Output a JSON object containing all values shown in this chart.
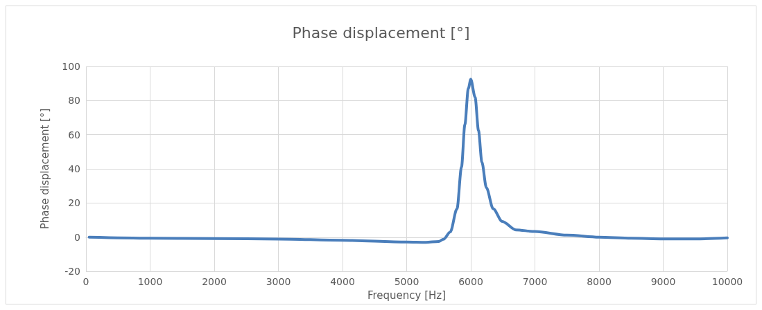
{
  "chart_data": {
    "type": "line",
    "title": "Phase displacement [°]",
    "xlabel": "Frequency [Hz]",
    "ylabel": "Phase displacement [°]",
    "xlim": [
      0,
      10000
    ],
    "xticks": [
      0,
      1000,
      2000,
      3000,
      4000,
      5000,
      6000,
      7000,
      8000,
      9000,
      10000
    ],
    "ylim": [
      -20,
      100
    ],
    "yticks": [
      -20,
      0,
      20,
      40,
      60,
      80,
      100
    ],
    "grid": true,
    "marker": "none",
    "line_style": "solid",
    "series": [
      {
        "color": "#4a7ebb",
        "x": [
          50,
          1000,
          2000,
          3000,
          4000,
          5000,
          5300,
          5500,
          5574,
          5680,
          5785,
          5855,
          5908,
          5961,
          6000,
          6067,
          6120,
          6173,
          6243,
          6349,
          6490,
          6702,
          7000,
          7500,
          8000,
          8500,
          9000,
          9500,
          10000
        ],
        "values": [
          0,
          -0.6,
          -0.8,
          -1.1,
          -1.8,
          -2.8,
          -3,
          -2.5,
          -1.2,
          3,
          16.6,
          41,
          66,
          87,
          92.5,
          82,
          62.5,
          44,
          29,
          16.6,
          9.2,
          4.3,
          3.3,
          1.2,
          0,
          -0.6,
          -1,
          -1,
          -0.4
        ]
      }
    ]
  }
}
